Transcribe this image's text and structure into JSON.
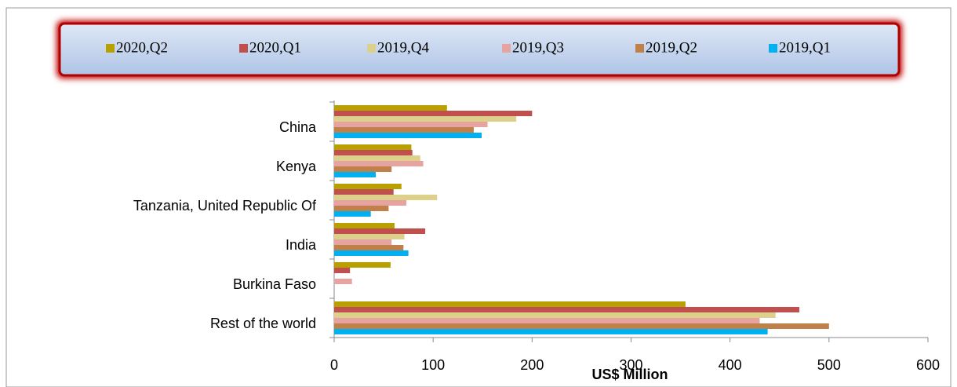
{
  "chart_data": {
    "type": "bar",
    "orientation": "horizontal",
    "categories": [
      "China",
      "Kenya",
      "Tanzania, United Republic Of",
      "India",
      "Burkina Faso",
      "Rest of the world"
    ],
    "series": [
      {
        "name": "2020,Q2",
        "color": "#b8a000",
        "values": [
          114,
          78,
          68,
          61,
          57,
          355
        ]
      },
      {
        "name": "2020,Q1",
        "color": "#c0504d",
        "values": [
          200,
          79,
          60,
          92,
          16,
          470
        ]
      },
      {
        "name": "2019,Q4",
        "color": "#ddd08a",
        "values": [
          184,
          87,
          104,
          71,
          0,
          446
        ]
      },
      {
        "name": "2019,Q3",
        "color": "#e6a3a0",
        "values": [
          155,
          90,
          73,
          58,
          18,
          430
        ]
      },
      {
        "name": "2019,Q2",
        "color": "#c0804a",
        "values": [
          141,
          58,
          55,
          70,
          0,
          500
        ]
      },
      {
        "name": "2019,Q1",
        "color": "#00b0f0",
        "values": [
          149,
          42,
          37,
          75,
          0,
          438
        ]
      }
    ],
    "x_label": "US$ Million",
    "xlim": [
      0,
      600
    ],
    "xticks": [
      0,
      100,
      200,
      300,
      400,
      500,
      600
    ],
    "legend": "top"
  }
}
